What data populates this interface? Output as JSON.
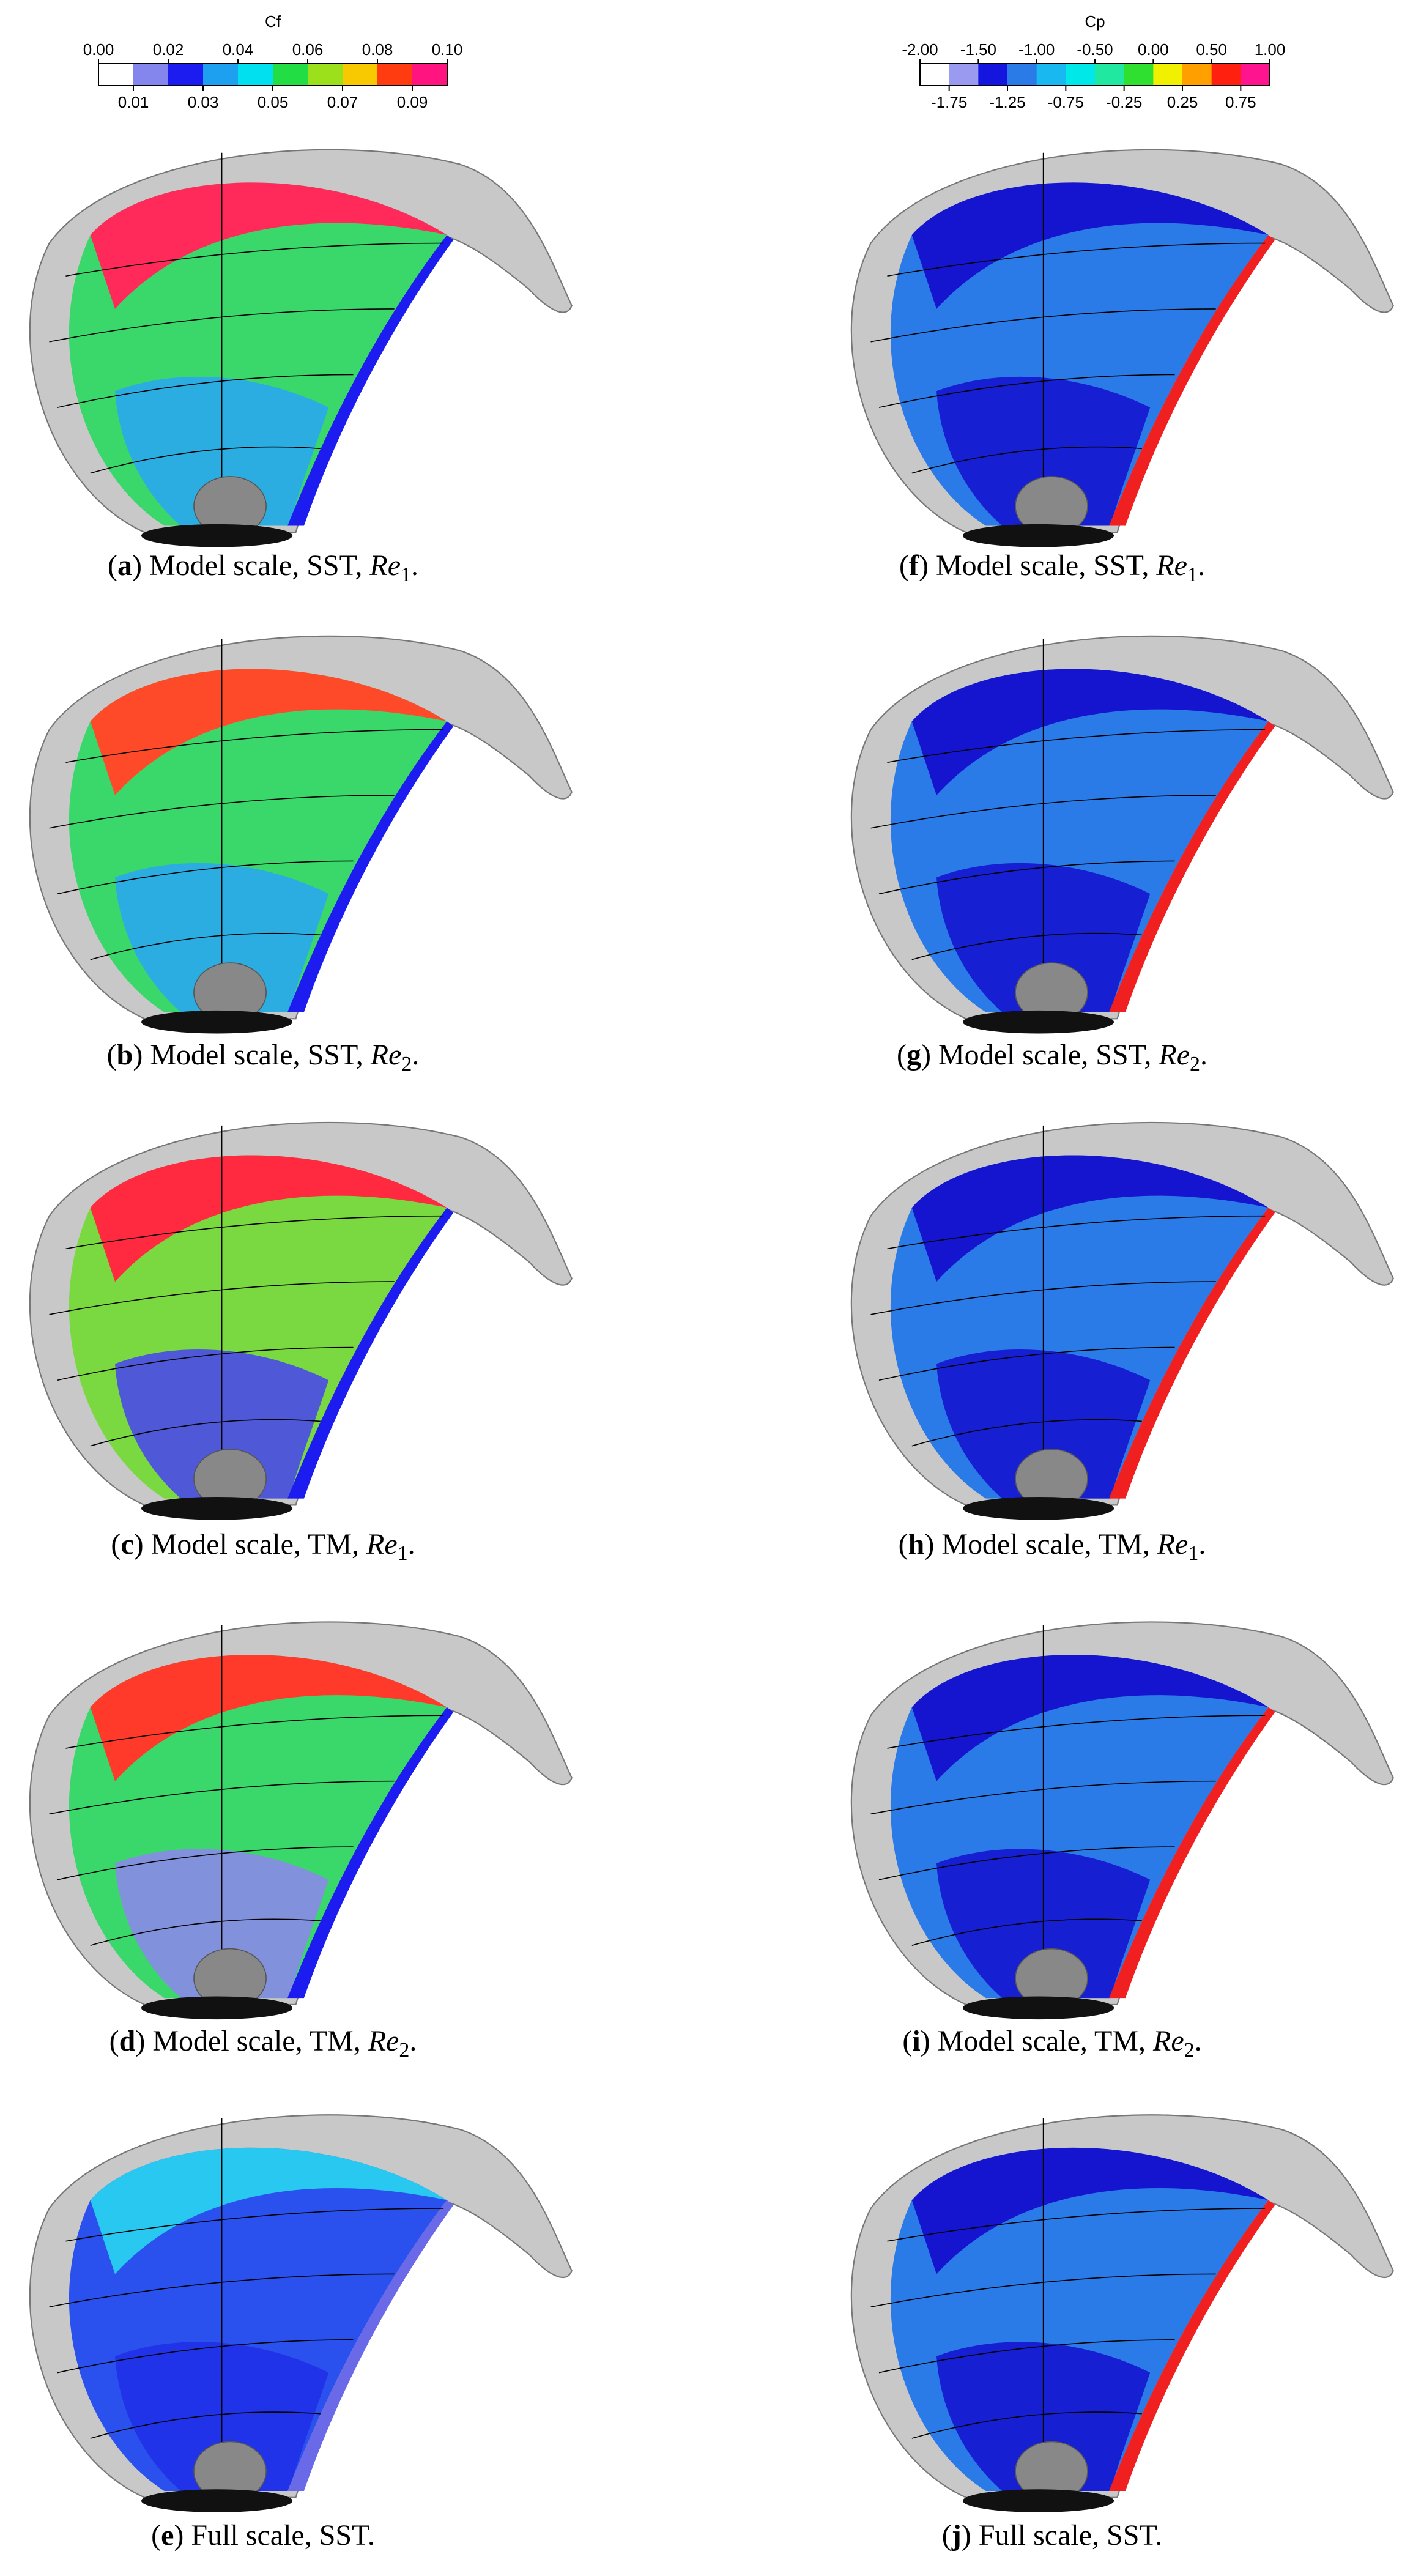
{
  "figure": {
    "colorbars": [
      {
        "title": "Cf",
        "colors": [
          "#ffffff",
          "#8585ee",
          "#1c1cf0",
          "#1ea0f0",
          "#00e0ee",
          "#22dd44",
          "#9be01a",
          "#f8c800",
          "#ff3c10",
          "#ff1480"
        ],
        "ticks_top": [
          {
            "value": 0,
            "label": "0.00"
          },
          {
            "value": 0.02,
            "label": "0.02"
          },
          {
            "value": 0.04,
            "label": "0.04"
          },
          {
            "value": 0.06,
            "label": "0.06"
          },
          {
            "value": 0.08,
            "label": "0.08"
          },
          {
            "value": 0.1,
            "label": "0.10"
          }
        ],
        "ticks_bottom": [
          {
            "value": 0.01,
            "label": "0.01"
          },
          {
            "value": 0.03,
            "label": "0.03"
          },
          {
            "value": 0.05,
            "label": "0.05"
          },
          {
            "value": 0.07,
            "label": "0.07"
          },
          {
            "value": 0.09,
            "label": "0.09"
          }
        ]
      },
      {
        "title": "Cp",
        "colors": [
          "#ffffff",
          "#9a9af0",
          "#1515e0",
          "#2a7ae8",
          "#1ab8f0",
          "#00e8e8",
          "#20e8a0",
          "#30e030",
          "#f0f000",
          "#ffa000",
          "#ff2010",
          "#ff1490"
        ],
        "ticks_top": [
          {
            "value": -2,
            "label": "-2.00"
          },
          {
            "value": -1.5,
            "label": "-1.50"
          },
          {
            "value": -1,
            "label": "-1.00"
          },
          {
            "value": -0.5,
            "label": "-0.50"
          },
          {
            "value": 0,
            "label": "0.00"
          },
          {
            "value": 0.5,
            "label": "0.50"
          },
          {
            "value": 1,
            "label": "1.00"
          }
        ],
        "ticks_bottom": [
          {
            "value": -1.75,
            "label": "-1.75"
          },
          {
            "value": -1.25,
            "label": "-1.25"
          },
          {
            "value": -0.75,
            "label": "-0.75"
          },
          {
            "value": -0.25,
            "label": "-0.25"
          },
          {
            "value": 0.25,
            "label": "0.25"
          },
          {
            "value": 0.75,
            "label": "0.75"
          }
        ]
      }
    ],
    "panels": [
      {
        "caption": [
          {
            "t": "("
          },
          {
            "t": "a",
            "b": true
          },
          {
            "t": ") Model scale, SST, "
          },
          {
            "t": "Re",
            "i": true
          },
          {
            "t": "1",
            "sub": true
          },
          {
            "t": "."
          }
        ]
      },
      {
        "caption": [
          {
            "t": "("
          },
          {
            "t": "b",
            "b": true
          },
          {
            "t": ") Model scale, SST, "
          },
          {
            "t": "Re",
            "i": true
          },
          {
            "t": "2",
            "sub": true
          },
          {
            "t": "."
          }
        ]
      },
      {
        "caption": [
          {
            "t": "("
          },
          {
            "t": "c",
            "b": true
          },
          {
            "t": ") Model scale, TM, "
          },
          {
            "t": "Re",
            "i": true
          },
          {
            "t": "1",
            "sub": true
          },
          {
            "t": "."
          }
        ]
      },
      {
        "caption": [
          {
            "t": "("
          },
          {
            "t": "d",
            "b": true
          },
          {
            "t": ") Model scale, TM, "
          },
          {
            "t": "Re",
            "i": true
          },
          {
            "t": "2",
            "sub": true
          },
          {
            "t": "."
          }
        ]
      },
      {
        "caption": [
          {
            "t": "("
          },
          {
            "t": "e",
            "b": true
          },
          {
            "t": ") Full scale, SST."
          }
        ]
      },
      {
        "caption": [
          {
            "t": "("
          },
          {
            "t": "f",
            "b": true
          },
          {
            "t": ") Model scale, SST, "
          },
          {
            "t": "Re",
            "i": true
          },
          {
            "t": "1",
            "sub": true
          },
          {
            "t": "."
          }
        ]
      },
      {
        "caption": [
          {
            "t": "("
          },
          {
            "t": "g",
            "b": true
          },
          {
            "t": ") Model scale, SST, "
          },
          {
            "t": "Re",
            "i": true
          },
          {
            "t": "2",
            "sub": true
          },
          {
            "t": "."
          }
        ]
      },
      {
        "caption": [
          {
            "t": "("
          },
          {
            "t": "h",
            "b": true
          },
          {
            "t": ") Model scale, TM, "
          },
          {
            "t": "Re",
            "i": true
          },
          {
            "t": "1",
            "sub": true
          },
          {
            "t": "."
          }
        ]
      },
      {
        "caption": [
          {
            "t": "("
          },
          {
            "t": "i",
            "b": true
          },
          {
            "t": ") Model scale, TM, "
          },
          {
            "t": "Re",
            "i": true
          },
          {
            "t": "2",
            "sub": true
          },
          {
            "t": "."
          }
        ]
      },
      {
        "caption": [
          {
            "t": "("
          },
          {
            "t": "j",
            "b": true
          },
          {
            "t": ") Full scale, SST."
          }
        ]
      }
    ]
  }
}
